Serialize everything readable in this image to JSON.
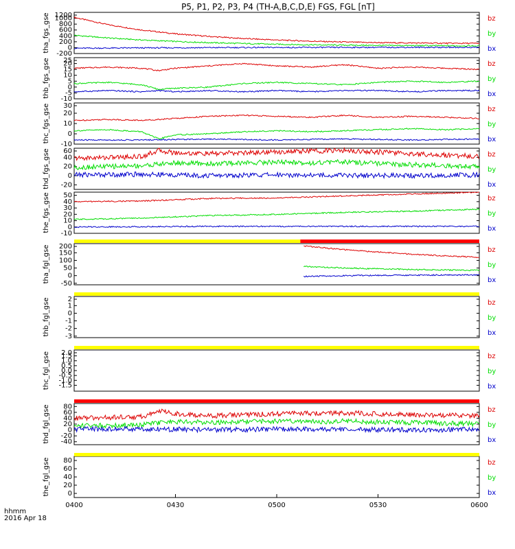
{
  "title": "P5, P1, P2, P3, P4 (TH-A,B,C,D,E) FGS, FGL [nT]",
  "colors": {
    "bz": "#dd0000",
    "by": "#00dd00",
    "bx": "#0000cc",
    "status_yellow": "#ffff00",
    "status_red": "#ff0000",
    "status_black": "#000000"
  },
  "footer": {
    "time_label": "hhmm",
    "date_label": "2016 Apr 18"
  },
  "chart_data": {
    "type": "line",
    "x_ticks": [
      "0400",
      "0430",
      "0500",
      "0530",
      "0600"
    ],
    "x_range": [
      "04:00",
      "06:00"
    ],
    "panels": [
      {
        "ylabel": "tha_fgs_gse",
        "ylim": [
          -200,
          1200
        ],
        "yticks": [
          "1200",
          "1000",
          "800",
          "600",
          "400",
          "200",
          "0",
          "-200"
        ],
        "series": [
          {
            "name": "bz",
            "x": [
              0,
              10,
              20,
              30,
              40,
              50,
              60,
              70,
              80,
              90,
              100,
              110,
              120
            ],
            "values": [
              1030,
              780,
              600,
              470,
              380,
              310,
              260,
              220,
              190,
              170,
              160,
              150,
              145
            ]
          },
          {
            "name": "by",
            "x": [
              0,
              10,
              20,
              30,
              40,
              50,
              60,
              70,
              80,
              90,
              100,
              110,
              120
            ],
            "values": [
              420,
              330,
              260,
              210,
              170,
              140,
              115,
              95,
              85,
              75,
              70,
              65,
              60
            ]
          },
          {
            "name": "bx",
            "x": [
              0,
              20,
              40,
              60,
              80,
              100,
              120
            ],
            "values": [
              -20,
              -10,
              0,
              5,
              8,
              10,
              10
            ]
          }
        ]
      },
      {
        "ylabel": "thb_fgs_gse",
        "ylim": [
          -10,
          25
        ],
        "yticks": [
          "25",
          "20",
          "15",
          "10",
          "5",
          "0",
          "-5",
          "-10"
        ],
        "series": [
          {
            "name": "bz",
            "x": [
              0,
              10,
              20,
              25,
              30,
              40,
              50,
              60,
              70,
              80,
              90,
              100,
              110,
              120
            ],
            "values": [
              16,
              17,
              16,
              14,
              16,
              18,
              20,
              18,
              17,
              19,
              16,
              17,
              16,
              15
            ]
          },
          {
            "name": "by",
            "x": [
              0,
              10,
              20,
              25,
              30,
              40,
              50,
              60,
              70,
              80,
              90,
              100,
              110,
              120
            ],
            "values": [
              3,
              4,
              2,
              -2,
              -1,
              0,
              3,
              4,
              3,
              2,
              4,
              5,
              4,
              5
            ]
          },
          {
            "name": "bx",
            "x": [
              0,
              10,
              20,
              25,
              30,
              40,
              50,
              60,
              70,
              80,
              90,
              100,
              110,
              120
            ],
            "values": [
              -4,
              -3,
              -4,
              -3,
              -4,
              -3,
              -4,
              -3,
              -4,
              -3,
              -3,
              -4,
              -3,
              -3
            ]
          }
        ]
      },
      {
        "ylabel": "thc_fgs_gse",
        "ylim": [
          -10,
          30
        ],
        "yticks": [
          "30",
          "20",
          "10",
          "0",
          "-10"
        ],
        "series": [
          {
            "name": "bz",
            "x": [
              0,
              10,
              20,
              30,
              40,
              50,
              60,
              70,
              80,
              90,
              100,
              110,
              120
            ],
            "values": [
              13,
              14,
              13,
              15,
              17,
              18,
              17,
              16,
              18,
              16,
              17,
              16,
              15
            ]
          },
          {
            "name": "by",
            "x": [
              0,
              10,
              20,
              25,
              30,
              40,
              50,
              60,
              70,
              80,
              90,
              100,
              110,
              120
            ],
            "values": [
              3,
              4,
              2,
              -5,
              -1,
              0,
              2,
              3,
              2,
              3,
              4,
              5,
              4,
              5
            ]
          },
          {
            "name": "bx",
            "x": [
              0,
              20,
              40,
              60,
              80,
              100,
              120
            ],
            "values": [
              -6,
              -6,
              -5,
              -6,
              -5,
              -6,
              -5
            ]
          }
        ]
      },
      {
        "ylabel": "thd_fgs_gse",
        "ylim": [
          -30,
          60
        ],
        "yticks": [
          "60",
          "40",
          "20",
          "0",
          "-20"
        ],
        "series": [
          {
            "name": "bz",
            "x": [
              0,
              10,
              20,
              25,
              30,
              40,
              50,
              60,
              70,
              80,
              90,
              100,
              110,
              120
            ],
            "values": [
              38,
              40,
              42,
              55,
              50,
              48,
              50,
              52,
              54,
              55,
              52,
              48,
              45,
              42
            ]
          },
          {
            "name": "by",
            "x": [
              0,
              10,
              20,
              25,
              30,
              40,
              50,
              60,
              70,
              80,
              90,
              100,
              110,
              120
            ],
            "values": [
              18,
              20,
              22,
              25,
              28,
              26,
              28,
              30,
              28,
              30,
              26,
              24,
              22,
              20
            ]
          },
          {
            "name": "bx",
            "x": [
              0,
              20,
              40,
              60,
              80,
              100,
              120
            ],
            "values": [
              2,
              3,
              0,
              2,
              1,
              0,
              2
            ]
          }
        ]
      },
      {
        "ylabel": "the_fgs_gse",
        "ylim": [
          -10,
          55
        ],
        "yticks": [
          "50",
          "40",
          "30",
          "20",
          "10",
          "0",
          "-10"
        ],
        "series": [
          {
            "name": "bz",
            "x": [
              0,
              20,
              40,
              60,
              80,
              100,
              120
            ],
            "values": [
              40,
              41,
              45,
              46,
              49,
              52,
              55
            ]
          },
          {
            "name": "by",
            "x": [
              0,
              20,
              40,
              60,
              80,
              100,
              120
            ],
            "values": [
              12,
              14,
              18,
              20,
              23,
              25,
              28
            ]
          },
          {
            "name": "bx",
            "x": [
              0,
              20,
              40,
              60,
              80,
              100,
              120
            ],
            "values": [
              0,
              0.5,
              1,
              1,
              1,
              1,
              1
            ]
          }
        ]
      },
      {
        "ylabel": "tha_fgl_gse",
        "ylim": [
          -60,
          210
        ],
        "yticks": [
          "200",
          "150",
          "100",
          "50",
          "0",
          "-50"
        ],
        "series": [
          {
            "name": "bz",
            "x": [
              68,
              80,
              90,
              100,
              110,
              120
            ],
            "values": [
              195,
              170,
              155,
              140,
              130,
              120
            ]
          },
          {
            "name": "by",
            "x": [
              68,
              80,
              90,
              100,
              110,
              120
            ],
            "values": [
              60,
              50,
              45,
              40,
              37,
              35
            ]
          },
          {
            "name": "bx",
            "x": [
              68,
              80,
              90,
              100,
              110,
              120
            ],
            "values": [
              -5,
              0,
              2,
              3,
              4,
              5
            ]
          }
        ]
      },
      {
        "ylabel": "thb_fgl_gse",
        "ylim": [
          -3.2,
          2.2
        ],
        "yticks": [
          "2",
          "1",
          "0",
          "-1",
          "-2",
          "-3"
        ],
        "series": []
      },
      {
        "ylabel": "thc_fgl_gse",
        "ylim": [
          -2.1,
          2.1
        ],
        "yticks": [
          "2.0",
          "1.5",
          "1.0",
          "0.5",
          "0.0",
          "-0.5",
          "-1.0",
          "-1.5"
        ],
        "series": []
      },
      {
        "ylabel": "thd_fgl_gse",
        "ylim": [
          -50,
          90
        ],
        "yticks": [
          "80",
          "60",
          "40",
          "20",
          "0",
          "-20",
          "-40"
        ],
        "series": [
          {
            "name": "bz",
            "x": [
              0,
              10,
              20,
              25,
              30,
              40,
              50,
              60,
              70,
              80,
              90,
              100,
              110,
              120
            ],
            "values": [
              40,
              42,
              45,
              65,
              55,
              48,
              52,
              55,
              57,
              58,
              55,
              52,
              50,
              48
            ]
          },
          {
            "name": "by",
            "x": [
              0,
              10,
              20,
              25,
              30,
              40,
              50,
              60,
              70,
              80,
              90,
              100,
              110,
              120
            ],
            "values": [
              15,
              16,
              18,
              25,
              28,
              26,
              28,
              30,
              28,
              30,
              27,
              25,
              23,
              20
            ]
          },
          {
            "name": "bx",
            "x": [
              0,
              20,
              40,
              60,
              80,
              100,
              120
            ],
            "values": [
              2,
              4,
              0,
              3,
              2,
              0,
              2
            ]
          }
        ]
      },
      {
        "ylabel": "the_fgl_gse",
        "ylim": [
          -10,
          90
        ],
        "yticks": [
          "80",
          "60",
          "40",
          "20",
          "0"
        ],
        "series": []
      }
    ],
    "status_bars": [
      {
        "segments": [
          {
            "color": "yellow",
            "from": 0,
            "to": 67
          },
          {
            "color": "red",
            "from": 67,
            "to": 120
          }
        ]
      },
      {
        "segments": [
          {
            "color": "yellow",
            "from": 0,
            "to": 120
          }
        ]
      },
      {
        "segments": [
          {
            "color": "yellow",
            "from": 0,
            "to": 120
          }
        ]
      },
      {
        "segments": [
          {
            "color": "red",
            "from": 0,
            "to": 120
          }
        ]
      },
      {
        "segments": [
          {
            "color": "yellow",
            "from": 0,
            "to": 120
          }
        ]
      }
    ]
  }
}
